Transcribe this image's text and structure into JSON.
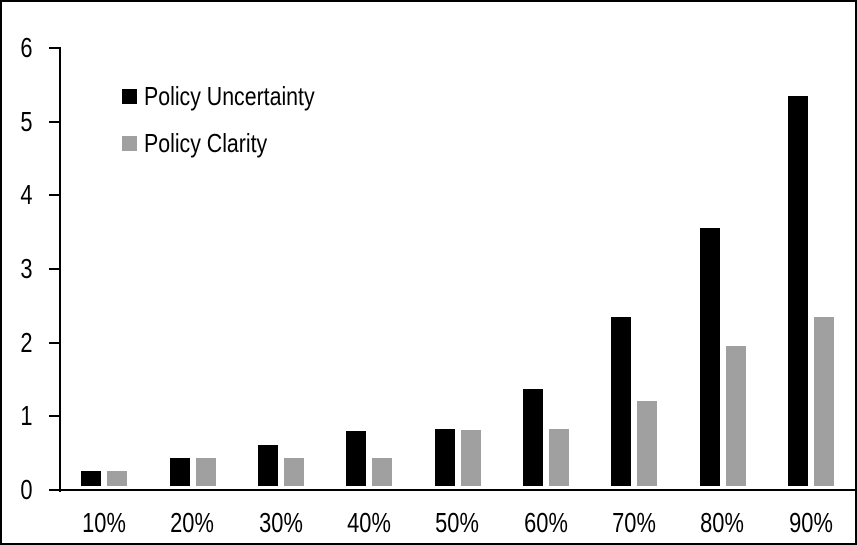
{
  "chart_data": {
    "type": "bar",
    "title": "",
    "xlabel": "",
    "ylabel": "",
    "categories": [
      "10%",
      "20%",
      "30%",
      "40%",
      "50%",
      "60%",
      "70%",
      "80%",
      "90%"
    ],
    "series": [
      {
        "name": "Policy Uncertainty",
        "color": "#000000",
        "values": [
          0.2,
          0.38,
          0.55,
          0.75,
          0.77,
          1.32,
          2.3,
          3.5,
          5.3
        ]
      },
      {
        "name": "Policy Clarity",
        "color": "#a0a0a0",
        "values": [
          0.2,
          0.38,
          0.38,
          0.38,
          0.76,
          0.77,
          1.15,
          1.9,
          2.3
        ]
      }
    ],
    "ylim": [
      0,
      6
    ],
    "yticks": [
      0,
      1,
      2,
      3,
      4,
      5,
      6
    ],
    "grid": false,
    "legend_position": "top-left",
    "frame_color": "#000000",
    "background_color": "#ffffff",
    "text_color": "#000000"
  }
}
